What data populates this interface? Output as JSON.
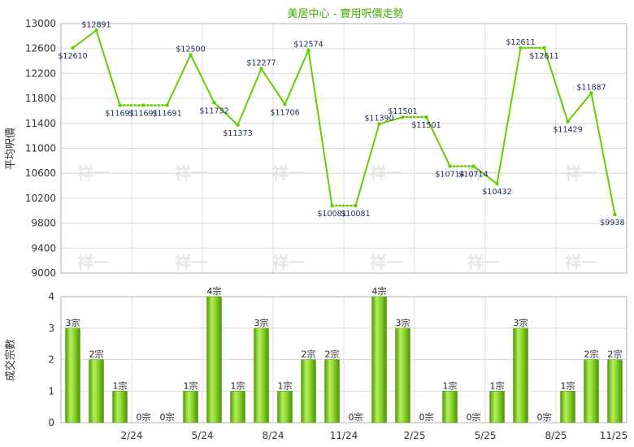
{
  "chart_data": [
    {
      "type": "line",
      "title": "美居中心 - 實用呎價走勢",
      "ylabel": "平均呎價",
      "ylim": [
        9000,
        13000
      ],
      "yticks": [
        9000,
        9400,
        9800,
        10200,
        10600,
        11000,
        11400,
        11800,
        12200,
        12600,
        13000
      ],
      "series": [
        {
          "values": [
            12610,
            12891,
            11691,
            11691,
            11691,
            12500,
            11732,
            11373,
            12277,
            11706,
            12574,
            10081,
            10081,
            11390,
            11501,
            11501,
            10714,
            10714,
            10432,
            12611,
            12611,
            11429,
            11887,
            9938
          ],
          "labels": [
            "$12610",
            "$12891",
            "$11691",
            "$11691",
            "$11691",
            "$12500",
            "$11732",
            "$11373",
            "$12277",
            "$11706",
            "$12574",
            "$10081",
            "$10081",
            "$11390",
            "$11501",
            "$11501",
            "$10714",
            "$10714",
            "$10432",
            "$12611",
            "$12611",
            "$11429",
            "$11887",
            "$9938"
          ],
          "carried_over": [
            false,
            false,
            false,
            true,
            true,
            false,
            false,
            false,
            false,
            false,
            false,
            false,
            true,
            false,
            false,
            true,
            false,
            true,
            false,
            false,
            true,
            false,
            false,
            false
          ]
        }
      ],
      "color": "#66cc00",
      "grid": true
    },
    {
      "type": "bar",
      "ylabel": "成交宗數",
      "ylim": [
        0,
        4
      ],
      "yticks": [
        0,
        1,
        2,
        3,
        4
      ],
      "x_ticks": [
        "2/24",
        "5/24",
        "8/24",
        "11/24",
        "2/25",
        "5/25",
        "8/25",
        "11/25"
      ],
      "values": [
        3,
        2,
        1,
        0,
        0,
        1,
        4,
        1,
        3,
        1,
        2,
        2,
        0,
        4,
        3,
        0,
        1,
        0,
        1,
        3,
        0,
        1,
        2,
        2
      ],
      "labels": [
        "3宗",
        "2宗",
        "1宗",
        "0宗",
        "0宗",
        "1宗",
        "4宗",
        "1宗",
        "3宗",
        "1宗",
        "2宗",
        "2宗",
        "0宗",
        "4宗",
        "3宗",
        "0宗",
        "1宗",
        "0宗",
        "1宗",
        "3宗",
        "0宗",
        "1宗",
        "2宗",
        "2宗"
      ],
      "color": "#66cc00",
      "grid": true
    }
  ],
  "watermark": "祥一"
}
